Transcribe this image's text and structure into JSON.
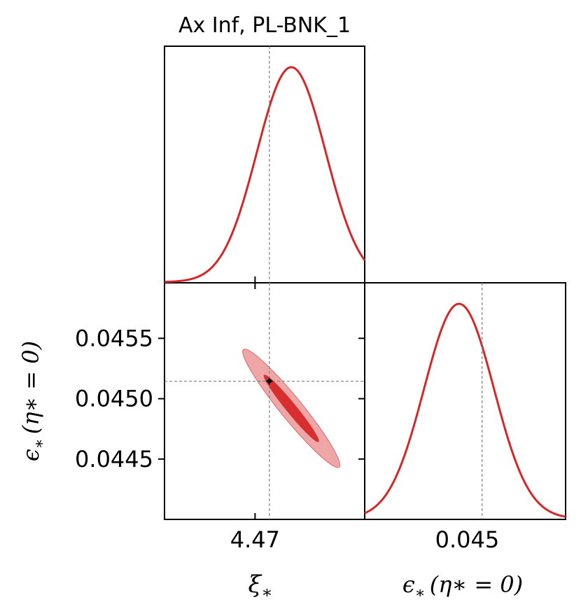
{
  "chart_data": {
    "type": "triangle-corner",
    "title": "Ax Inf, PL-BNK_1",
    "color": "#d62728",
    "parameters": [
      {
        "label_base": "ξ",
        "label_sub": "∗",
        "label_args": "",
        "range": [
          4.4605,
          4.4815
        ],
        "marker": 4.4715,
        "mean": 4.4738,
        "sigma": 0.0036,
        "ticks": [
          4.47
        ],
        "tick_labels": [
          "4.47"
        ]
      },
      {
        "label_base": "ϵ",
        "label_sub": "∗",
        "label_args": "(η∗ = 0)",
        "range": [
          0.044,
          0.04596
        ],
        "marker": 0.045145,
        "mean": 0.04492,
        "sigma": 0.00034,
        "ticks": [
          0.0445,
          0.045,
          0.0455
        ],
        "tick_labels": [
          "0.0445",
          "0.0450",
          "0.0455"
        ],
        "x_ticks": [
          0.045
        ],
        "x_tick_labels": [
          "0.045"
        ]
      }
    ],
    "contours_2d": {
      "center": [
        4.4738,
        0.04492
      ],
      "levels": [
        {
          "name": "68%",
          "half_major": [
            0.00285,
            -0.000275
          ],
          "half_minor": [
            0.00032,
            3.3e-05
          ],
          "fill": "#d62728",
          "opacity": 0.95
        },
        {
          "name": "95%",
          "half_major": [
            0.00505,
            -0.000485
          ],
          "half_minor": [
            0.00072,
            7.5e-05
          ],
          "fill": "#e8888a",
          "opacity": 0.75
        }
      ]
    },
    "grid": false,
    "legend": "none"
  }
}
